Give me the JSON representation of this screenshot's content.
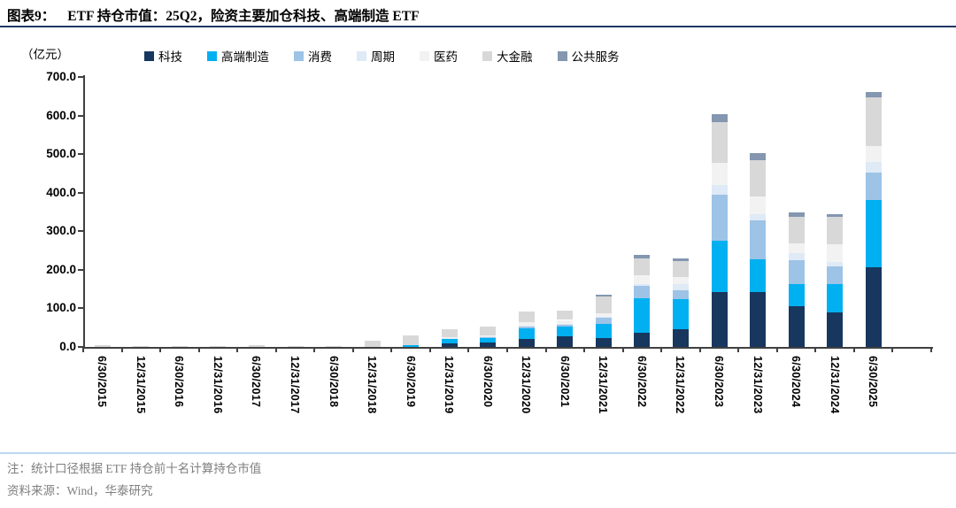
{
  "header": {
    "title_prefix": "图表9：",
    "title_rest": "ETF 持仓市值：25Q2，险资主要加仓科技、高端制造 ETF"
  },
  "unit_label": "（亿元）",
  "footer": {
    "note1": "注：统计口径根据 ETF 持仓前十名计算持仓市值",
    "note2": "资料来源：Wind，华泰研究"
  },
  "colors": {
    "title_rule": "#1F3864",
    "axis": "#404040",
    "footer_rule": "#BDD7EE",
    "note_text": "#7F7F7F"
  },
  "chart_data": {
    "type": "bar",
    "stacked": true,
    "title": "ETF 持仓市值：25Q2，险资主要加仓科技、高端制造 ETF",
    "ylabel": "（亿元）",
    "ylim": [
      0,
      700
    ],
    "y_tick_step": 100,
    "y_ticks": [
      "0.0",
      "100.0",
      "200.0",
      "300.0",
      "400.0",
      "500.0",
      "600.0",
      "700.0"
    ],
    "grid": false,
    "legend_position": "top",
    "categories": [
      "6/30/2015",
      "12/31/2015",
      "6/30/2016",
      "12/31/2016",
      "6/30/2017",
      "12/31/2017",
      "6/30/2018",
      "12/31/2018",
      "6/30/2019",
      "12/31/2019",
      "6/30/2020",
      "12/31/2020",
      "6/30/2021",
      "12/31/2021",
      "6/30/2022",
      "12/31/2022",
      "6/30/2023",
      "12/31/2023",
      "6/30/2024",
      "12/31/2024",
      "6/30/2025"
    ],
    "series": [
      {
        "name": "科技",
        "color": "#17375E",
        "values": [
          0,
          0,
          0,
          0,
          0,
          0,
          0,
          0,
          0,
          10,
          12,
          21,
          27,
          24,
          37,
          45,
          143,
          142,
          105,
          90,
          207
        ]
      },
      {
        "name": "高端制造",
        "color": "#00B0F0",
        "values": [
          0,
          0,
          0,
          0,
          0,
          0,
          0,
          0,
          4,
          11,
          12,
          27,
          25,
          36,
          90,
          80,
          132,
          85,
          59,
          74,
          175
        ]
      },
      {
        "name": "消费",
        "color": "#9DC3E6",
        "values": [
          0,
          0,
          0,
          0,
          0,
          0,
          0,
          0,
          0,
          2,
          3,
          5,
          5,
          15,
          31,
          22,
          119,
          102,
          61,
          45,
          70
        ]
      },
      {
        "name": "周期",
        "color": "#DEEAF6",
        "values": [
          0,
          0,
          0,
          0,
          0,
          0,
          0,
          0,
          0,
          1,
          1,
          2,
          3,
          2,
          5,
          15,
          27,
          15,
          18,
          12,
          28
        ]
      },
      {
        "name": "医药",
        "color": "#F2F2F2",
        "values": [
          0,
          0,
          0,
          0,
          0,
          0,
          0,
          0,
          0,
          2,
          2,
          10,
          10,
          10,
          23,
          20,
          57,
          47,
          25,
          46,
          40
        ]
      },
      {
        "name": "大金融",
        "color": "#D8D8D8",
        "values": [
          4,
          3,
          3,
          3,
          4,
          2,
          3,
          16,
          26,
          20,
          23,
          27,
          25,
          44,
          44,
          40,
          105,
          94,
          70,
          70,
          128
        ]
      },
      {
        "name": "公共服务",
        "color": "#8496B0",
        "values": [
          0,
          0,
          0,
          0,
          0,
          0,
          0,
          0,
          0,
          0,
          0,
          0,
          0,
          5,
          8,
          8,
          20,
          18,
          12,
          8,
          14
        ]
      }
    ]
  }
}
